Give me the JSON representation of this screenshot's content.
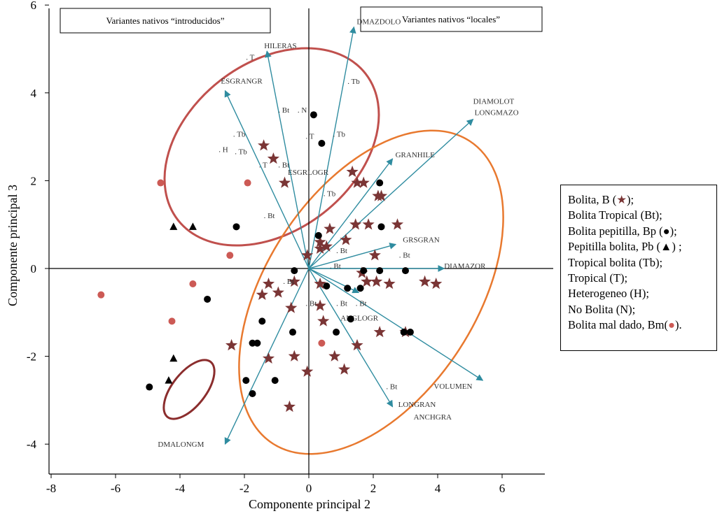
{
  "chart_data": {
    "type": "scatter",
    "xlabel": "Componente principal 2",
    "ylabel": "Componente principal 3",
    "xlim": [
      -8.6,
      7.3
    ],
    "ylim": [
      -4.3,
      6.3
    ],
    "xticks": [
      "-8",
      "-6",
      "-4",
      "-2",
      "0",
      "2",
      "4",
      "6"
    ],
    "yticks": [
      "-4",
      "-2",
      "0",
      "2",
      "4",
      "6"
    ],
    "header_boxes": [
      "Variantes nativos “introducidos”",
      "Variantes nativos “locales”"
    ],
    "vectors": [
      {
        "label": "DMAZDOLO",
        "x": 1.4,
        "y": 5.5
      },
      {
        "label": "HILERAS",
        "x": -1.3,
        "y": 4.95
      },
      {
        "label": "ESGRANGR",
        "x": -2.6,
        "y": 4.05
      },
      {
        "label": "DIAMOLOT",
        "x": 5.1,
        "y": 3.4
      },
      {
        "label": "LONGMAZO",
        "x": 5.1,
        "y": 3.4
      },
      {
        "label": "GRANHILE",
        "x": 2.6,
        "y": 2.5
      },
      {
        "label": "GRSGRAN",
        "x": 2.7,
        "y": 0.55
      },
      {
        "label": "DIAMAZOR",
        "x": 4.2,
        "y": 0.0
      },
      {
        "label": "ANGLOGR",
        "x": 1.55,
        "y": -0.55
      },
      {
        "label": "VOLUMEN",
        "x": 5.4,
        "y": -2.55
      },
      {
        "label": "LONGRAN",
        "x": 2.6,
        "y": -3.15
      },
      {
        "label": "ANCHGRA",
        "x": 2.6,
        "y": -3.15
      },
      {
        "label": "DMALONGM",
        "x": -2.6,
        "y": -4.0
      },
      {
        "label": "ESGRLOGR",
        "x": 0.0,
        "y": 0.0
      }
    ],
    "point_labels": [
      {
        "label": "T",
        "x": -1.95,
        "y": 4.75
      },
      {
        "label": "Tb",
        "x": 1.2,
        "y": 4.2
      },
      {
        "label": "Bt",
        "x": -0.95,
        "y": 3.55
      },
      {
        "label": "N",
        "x": -0.35,
        "y": 3.55
      },
      {
        "label": "Tb",
        "x": -2.35,
        "y": 3.0
      },
      {
        "label": "Tb",
        "x": 0.75,
        "y": 3.0
      },
      {
        "label": "T",
        "x": -0.1,
        "y": 2.95
      },
      {
        "label": "H",
        "x": -2.8,
        "y": 2.65
      },
      {
        "label": "Tb",
        "x": -2.3,
        "y": 2.6
      },
      {
        "label": "T",
        "x": -1.55,
        "y": 2.3
      },
      {
        "label": "Bt",
        "x": -0.95,
        "y": 2.3
      },
      {
        "label": "Tb",
        "x": 0.45,
        "y": 1.65
      },
      {
        "label": "Bt",
        "x": -1.4,
        "y": 1.15
      },
      {
        "label": "Bt",
        "x": 0.85,
        "y": 0.35
      },
      {
        "label": "Bt",
        "x": 2.8,
        "y": 0.25
      },
      {
        "label": "Bt",
        "x": 0.65,
        "y": 0.0
      },
      {
        "label": "Bt",
        "x": -0.8,
        "y": -0.35
      },
      {
        "label": "Bt",
        "x": -0.1,
        "y": -0.85
      },
      {
        "label": "Bt",
        "x": 0.85,
        "y": -0.85
      },
      {
        "label": "Bt",
        "x": 1.45,
        "y": -0.85
      },
      {
        "label": "Bt",
        "x": 2.4,
        "y": -2.75
      }
    ],
    "series": [
      {
        "name": "Bolita, B",
        "marker": "star",
        "color": "#7a3535",
        "x": [
          -1.4,
          -1.1,
          -0.75,
          -0.05,
          0.35,
          0.65,
          1.35,
          1.5,
          1.7,
          2.15,
          2.25,
          2.75,
          0.55,
          0.35,
          1.45,
          1.85,
          1.15,
          2.05,
          1.65,
          -1.25,
          -1.45,
          -0.95,
          -0.45,
          0.35,
          1.8,
          2.1,
          2.5,
          3.6,
          3.95,
          -0.55,
          0.45,
          0.35,
          2.2,
          3.0,
          -2.4,
          -1.25,
          -0.45,
          0.8,
          1.1,
          1.5,
          -0.05,
          -0.6
        ],
        "y": [
          2.8,
          2.5,
          1.95,
          0.3,
          0.6,
          0.9,
          2.2,
          1.95,
          1.95,
          1.65,
          1.65,
          1.0,
          0.5,
          0.45,
          1.0,
          1.0,
          0.65,
          0.3,
          -0.1,
          -0.35,
          -0.6,
          -0.55,
          -0.3,
          -0.35,
          -0.3,
          -0.3,
          -0.35,
          -0.3,
          -0.35,
          -0.9,
          -1.2,
          -0.85,
          -1.45,
          -1.45,
          -1.75,
          -2.05,
          -2.0,
          -2.0,
          -2.3,
          -1.75,
          -2.35,
          -3.15
        ]
      },
      {
        "name": "Bolita pepitilla, Bp",
        "marker": "circle",
        "color": "#000000",
        "x": [
          0.15,
          0.4,
          -2.25,
          0.3,
          2.2,
          2.25,
          -0.45,
          1.7,
          2.2,
          3.0,
          0.55,
          1.6,
          1.2,
          -3.15,
          -1.45,
          1.3,
          -0.5,
          0.85,
          -1.6,
          -1.75,
          -1.05,
          2.95,
          3.15,
          -1.95,
          -1.75,
          -4.95
        ],
        "y": [
          3.5,
          2.85,
          0.95,
          0.75,
          1.95,
          0.95,
          -0.05,
          -0.05,
          -0.05,
          -0.05,
          -0.4,
          -0.45,
          -0.45,
          -0.7,
          -1.2,
          -1.15,
          -1.45,
          -1.45,
          -1.7,
          -1.7,
          -2.55,
          -1.45,
          -1.45,
          -2.55,
          -2.85,
          -2.7
        ]
      },
      {
        "name": "Pepitilla bolita, Pb",
        "marker": "triangle",
        "color": "#000000",
        "x": [
          -3.6,
          -4.2,
          -4.2,
          -4.35
        ],
        "y": [
          0.95,
          0.95,
          -2.05,
          -2.55
        ]
      },
      {
        "name": "Bolita mal dado, Bm",
        "marker": "circle",
        "color": "#cc5a55",
        "x": [
          -4.6,
          -1.9,
          -2.45,
          -3.6,
          -6.45,
          -4.25,
          0.4
        ],
        "y": [
          1.95,
          1.95,
          0.3,
          -0.35,
          -0.6,
          -1.2,
          -1.7
        ]
      }
    ],
    "grid": false
  },
  "legend": {
    "items": [
      {
        "prefix": "Bolita, B (",
        "symbol": "★",
        "suffix": ");"
      },
      {
        "prefix": "Bolita Tropical (Bt);",
        "symbol": "",
        "suffix": ""
      },
      {
        "prefix": "Bolita pepitilla, Bp (",
        "symbol": "●",
        "suffix": ");"
      },
      {
        "prefix": "Pepitilla bolita, Pb (",
        "symbol": "▲",
        "suffix": ") ;"
      },
      {
        "prefix": "Tropical bolita (Tb);",
        "symbol": "",
        "suffix": ""
      },
      {
        "prefix": "Tropical (T);",
        "symbol": "",
        "suffix": ""
      },
      {
        "prefix": "Heterogeneo (H);",
        "symbol": "",
        "suffix": ""
      },
      {
        "prefix": "No Bolita (N);",
        "symbol": "",
        "suffix": ""
      },
      {
        "prefix": "Bolita mal dado, Bm(",
        "symbol": "●",
        "suffix": ")."
      }
    ]
  },
  "colors": {
    "vector": "#2f8ca0",
    "ellipse_introduced": "#c0504d",
    "ellipse_local": "#e8792f",
    "ellipse_small": "#8b2d2d"
  }
}
